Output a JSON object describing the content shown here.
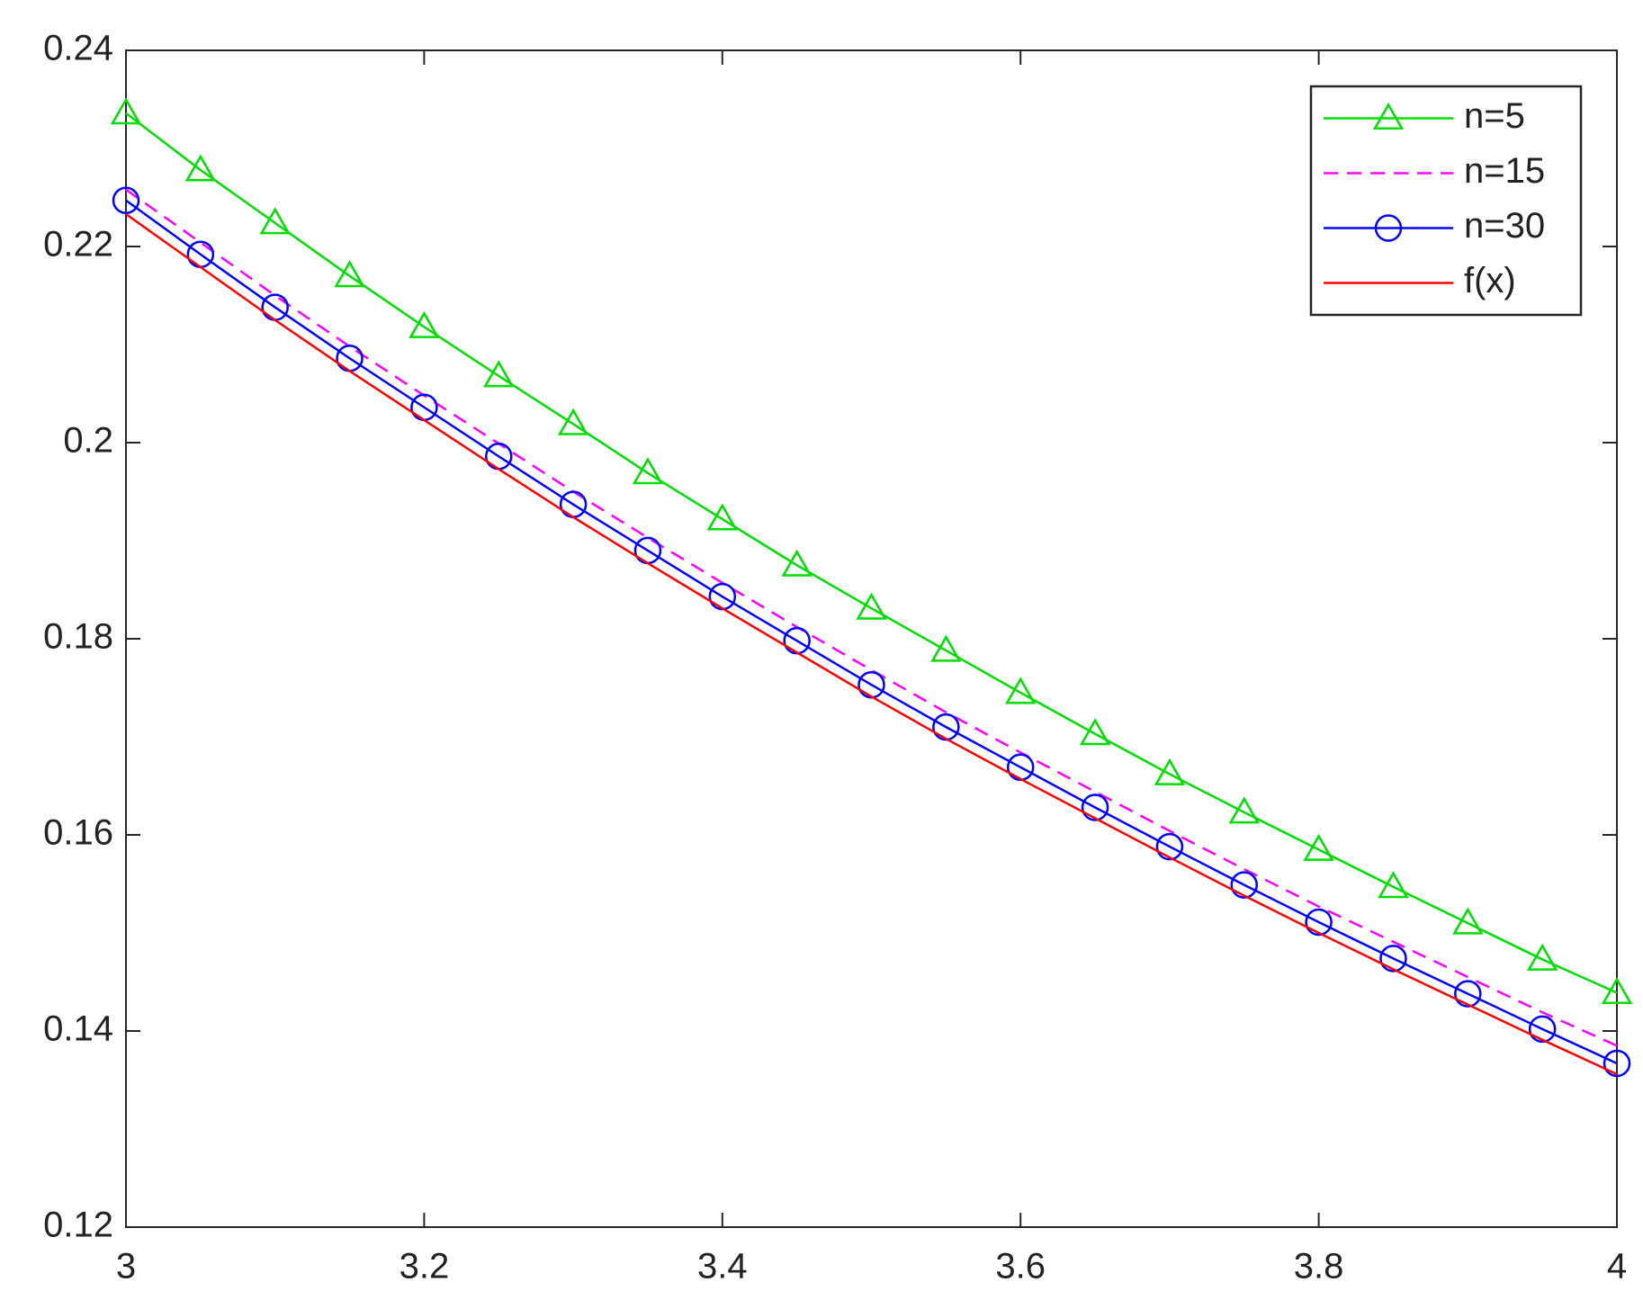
{
  "chart_data": {
    "type": "line",
    "x": [
      3,
      3.05,
      3.1,
      3.15,
      3.2,
      3.25,
      3.3,
      3.35,
      3.4,
      3.45,
      3.5,
      3.55,
      3.6,
      3.65,
      3.7,
      3.75,
      3.8,
      3.85,
      3.9,
      3.95,
      4
    ],
    "series": [
      {
        "name": "n=5",
        "color": "#00dd00",
        "marker": "triangle",
        "linestyle": "solid",
        "values": [
          0.2336,
          0.2278,
          0.2224,
          0.217,
          0.2118,
          0.2068,
          0.2019,
          0.1969,
          0.1922,
          0.1875,
          0.1831,
          0.1788,
          0.1745,
          0.1703,
          0.1662,
          0.1623,
          0.1585,
          0.1547,
          0.151,
          0.1473,
          0.1439
        ]
      },
      {
        "name": "n=15",
        "color": "#ff00ff",
        "marker": "none",
        "linestyle": "dashed",
        "values": [
          0.2258,
          0.2204,
          0.215,
          0.2098,
          0.2048,
          0.1999,
          0.195,
          0.1903,
          0.1857,
          0.1812,
          0.1768,
          0.1725,
          0.1684,
          0.1644,
          0.1604,
          0.1565,
          0.1527,
          0.1491,
          0.1455,
          0.1419,
          0.1385
        ]
      },
      {
        "name": "n=30",
        "color": "#0000ff",
        "marker": "circle",
        "linestyle": "solid",
        "values": [
          0.2247,
          0.2192,
          0.2138,
          0.2086,
          0.2036,
          0.1986,
          0.1937,
          0.189,
          0.1843,
          0.1798,
          0.1753,
          0.171,
          0.1669,
          0.1628,
          0.1588,
          0.1549,
          0.1511,
          0.1474,
          0.1438,
          0.1402,
          0.1367
        ]
      },
      {
        "name": "f(x)",
        "color": "#ff0000",
        "marker": "none",
        "linestyle": "solid",
        "values": [
          0.2233,
          0.2179,
          0.2125,
          0.2073,
          0.2023,
          0.1973,
          0.1924,
          0.1877,
          0.1831,
          0.1786,
          0.1741,
          0.1698,
          0.1657,
          0.1617,
          0.1577,
          0.1538,
          0.15,
          0.1463,
          0.1427,
          0.1391,
          0.1356
        ]
      }
    ],
    "xlim": [
      3,
      4
    ],
    "xticks": [
      3,
      3.2,
      3.4,
      3.6,
      3.8,
      4
    ],
    "ylim": [
      0.12,
      0.24
    ],
    "yticks": [
      0.12,
      0.14,
      0.16,
      0.18,
      0.2,
      0.22,
      0.24
    ],
    "grid": false,
    "legend": "northeast"
  }
}
